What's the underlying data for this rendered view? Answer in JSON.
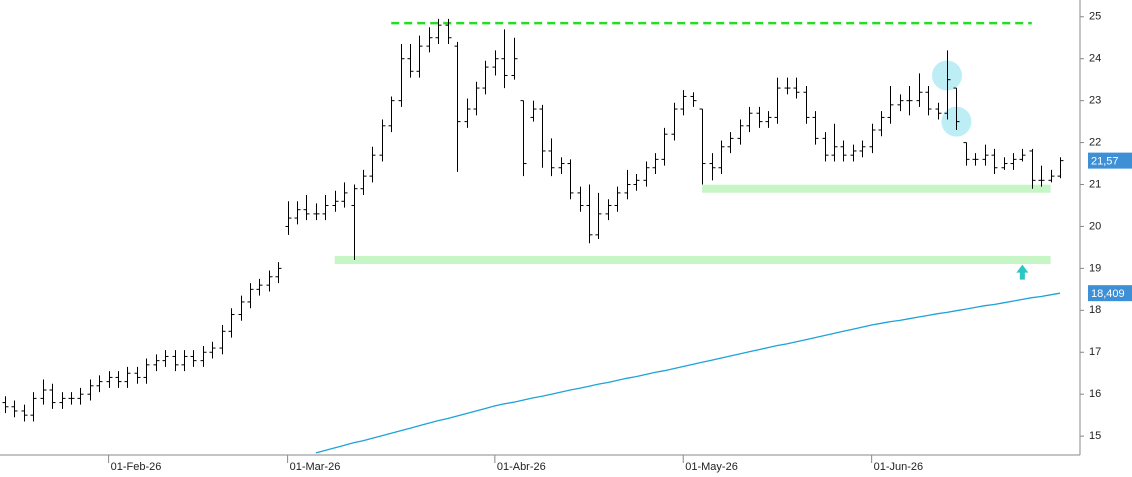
{
  "chart_data": {
    "type": "ohlc",
    "categories": [
      null,
      null,
      null,
      null,
      null,
      null,
      null,
      null,
      null,
      null,
      null,
      "01-Feb-26",
      null,
      null,
      null,
      null,
      null,
      null,
      null,
      null,
      null,
      null,
      null,
      null,
      null,
      null,
      null,
      null,
      null,
      null,
      "01-Mar-26",
      null,
      null,
      null,
      null,
      null,
      null,
      null,
      null,
      null,
      null,
      null,
      null,
      null,
      null,
      null,
      null,
      null,
      null,
      null,
      null,
      null,
      "01-Abr-26",
      null,
      null,
      null,
      null,
      null,
      null,
      null,
      null,
      null,
      null,
      null,
      null,
      null,
      null,
      null,
      null,
      null,
      null,
      null,
      "01-May-26",
      null,
      null,
      null,
      null,
      null,
      null,
      null,
      null,
      null,
      null,
      null,
      null,
      null,
      null,
      null,
      null,
      null,
      null,
      null,
      "01-Jun-26",
      null,
      null,
      null,
      null,
      null,
      null,
      null,
      null,
      null,
      null,
      null,
      null,
      null,
      null,
      null,
      null,
      null,
      null,
      null,
      null
    ],
    "ohlc": {
      "color": "#000000",
      "open": [
        15.8,
        15.7,
        15.6,
        15.5,
        15.9,
        16.1,
        15.8,
        15.9,
        15.9,
        16.0,
        16.2,
        16.3,
        16.4,
        16.3,
        16.5,
        16.4,
        16.7,
        16.8,
        16.9,
        16.7,
        16.9,
        16.8,
        17.0,
        17.1,
        17.5,
        17.9,
        18.2,
        18.5,
        18.6,
        18.8,
        20.0,
        20.2,
        20.4,
        20.3,
        20.3,
        20.5,
        20.6,
        20.5,
        20.9,
        21.2,
        21.7,
        22.4,
        23.0,
        24.0,
        23.7,
        24.3,
        24.5,
        24.8,
        24.3,
        22.5,
        22.8,
        23.3,
        23.8,
        24.0,
        23.6,
        23.0,
        22.6,
        22.8,
        21.8,
        21.4,
        21.5,
        20.8,
        20.5,
        19.8,
        20.3,
        20.5,
        20.8,
        21.0,
        21.1,
        21.4,
        21.6,
        22.2,
        22.8,
        23.1,
        22.8,
        21.5,
        21.4,
        21.9,
        22.1,
        22.4,
        22.7,
        22.5,
        22.6,
        23.3,
        23.3,
        23.2,
        22.6,
        22.1,
        21.7,
        21.9,
        21.7,
        21.8,
        21.9,
        22.3,
        22.6,
        22.9,
        23.0,
        23.0,
        23.2,
        22.8,
        22.7,
        23.3,
        22.0,
        21.6,
        21.6,
        21.7,
        21.4,
        21.5,
        21.6,
        21.8,
        21.1,
        21.1,
        21.2
      ],
      "high": [
        15.95,
        15.85,
        15.75,
        16.05,
        16.35,
        16.25,
        16.05,
        16.05,
        16.15,
        16.35,
        16.45,
        16.55,
        16.55,
        16.65,
        16.65,
        16.85,
        16.95,
        17.05,
        17.05,
        17.05,
        17.05,
        17.15,
        17.25,
        17.65,
        18.05,
        18.35,
        18.65,
        18.75,
        18.95,
        19.15,
        20.6,
        20.6,
        20.75,
        20.55,
        20.75,
        20.85,
        21.05,
        21.0,
        21.35,
        21.9,
        22.55,
        23.1,
        24.35,
        24.35,
        24.55,
        24.75,
        24.95,
        24.95,
        24.4,
        23.05,
        23.45,
        23.95,
        24.2,
        24.7,
        24.5,
        23.0,
        23.0,
        22.9,
        22.1,
        21.65,
        21.6,
        20.95,
        21.0,
        20.8,
        20.65,
        20.95,
        21.35,
        21.25,
        21.55,
        21.75,
        22.35,
        22.95,
        23.25,
        23.2,
        22.8,
        21.75,
        22.05,
        22.25,
        22.55,
        22.85,
        22.85,
        22.75,
        23.55,
        23.55,
        23.55,
        23.35,
        22.75,
        22.25,
        22.45,
        22.05,
        21.95,
        22.05,
        22.45,
        22.75,
        23.35,
        23.15,
        23.35,
        23.65,
        23.35,
        22.95,
        24.2,
        23.3,
        22.0,
        21.75,
        21.95,
        21.85,
        21.65,
        21.75,
        21.85,
        21.85,
        21.45,
        21.35,
        21.65
      ],
      "low": [
        15.55,
        15.45,
        15.35,
        15.35,
        15.75,
        15.65,
        15.65,
        15.75,
        15.75,
        15.85,
        16.05,
        16.15,
        16.15,
        16.15,
        16.25,
        16.25,
        16.55,
        16.65,
        16.55,
        16.55,
        16.65,
        16.65,
        16.85,
        16.95,
        17.35,
        17.75,
        18.05,
        18.35,
        18.45,
        18.65,
        19.8,
        20.05,
        20.15,
        20.15,
        20.15,
        20.35,
        20.45,
        19.2,
        20.75,
        21.05,
        21.55,
        22.25,
        22.85,
        23.55,
        23.55,
        24.15,
        24.35,
        24.35,
        21.3,
        22.35,
        22.65,
        23.15,
        23.6,
        23.3,
        23.5,
        21.2,
        22.5,
        21.4,
        21.2,
        21.25,
        20.65,
        20.35,
        19.6,
        19.7,
        20.15,
        20.35,
        20.65,
        20.85,
        20.95,
        21.25,
        21.45,
        22.05,
        22.65,
        22.85,
        21.0,
        21.1,
        21.25,
        21.75,
        21.95,
        22.25,
        22.35,
        22.35,
        22.45,
        23.15,
        23.05,
        22.45,
        21.95,
        21.55,
        21.55,
        21.55,
        21.55,
        21.65,
        21.75,
        22.15,
        22.45,
        22.75,
        22.65,
        22.85,
        22.65,
        22.55,
        22.55,
        22.3,
        21.45,
        21.45,
        21.45,
        21.25,
        21.35,
        21.35,
        21.55,
        20.9,
        20.95,
        21.05,
        21.15
      ],
      "close": [
        15.7,
        15.6,
        15.5,
        15.9,
        16.1,
        15.8,
        15.9,
        15.9,
        16.0,
        16.2,
        16.3,
        16.4,
        16.3,
        16.5,
        16.4,
        16.7,
        16.8,
        16.9,
        16.7,
        16.9,
        16.8,
        17.0,
        17.1,
        17.5,
        17.9,
        18.2,
        18.5,
        18.6,
        18.8,
        19.0,
        20.2,
        20.4,
        20.3,
        20.3,
        20.5,
        20.6,
        20.8,
        20.9,
        21.2,
        21.7,
        22.4,
        23.0,
        24.0,
        23.7,
        24.3,
        24.5,
        24.8,
        24.5,
        22.5,
        22.8,
        23.3,
        23.8,
        24.0,
        23.6,
        24.0,
        21.5,
        22.8,
        21.8,
        21.4,
        21.5,
        20.8,
        20.5,
        19.8,
        20.3,
        20.5,
        20.8,
        21.0,
        21.1,
        21.4,
        21.6,
        22.2,
        22.8,
        23.1,
        23.0,
        21.5,
        21.4,
        21.9,
        22.1,
        22.4,
        22.7,
        22.5,
        22.6,
        23.3,
        23.3,
        23.2,
        22.6,
        22.1,
        21.7,
        21.9,
        21.7,
        21.8,
        21.9,
        22.3,
        22.6,
        22.9,
        23.0,
        23.0,
        23.2,
        22.8,
        22.7,
        23.5,
        22.5,
        21.6,
        21.6,
        21.7,
        21.4,
        21.5,
        21.6,
        21.7,
        21.1,
        21.1,
        21.2,
        21.57
      ],
      "last_label": "21,57",
      "label_color": "#3d8fd6"
    },
    "moving_average": {
      "color": "#1ea3d8",
      "values": [
        null,
        null,
        null,
        null,
        null,
        null,
        null,
        null,
        null,
        null,
        null,
        null,
        null,
        null,
        null,
        null,
        null,
        null,
        null,
        null,
        null,
        null,
        null,
        null,
        null,
        null,
        null,
        null,
        null,
        null,
        null,
        null,
        null,
        14.6,
        14.66,
        14.72,
        14.78,
        14.84,
        14.89,
        14.95,
        15.01,
        15.07,
        15.13,
        15.19,
        15.25,
        15.31,
        15.37,
        15.42,
        15.48,
        15.54,
        15.6,
        15.66,
        15.72,
        15.77,
        15.81,
        15.86,
        15.91,
        15.95,
        16.0,
        16.05,
        16.1,
        16.14,
        16.19,
        16.24,
        16.28,
        16.33,
        16.38,
        16.42,
        16.47,
        16.52,
        16.56,
        16.61,
        16.66,
        16.71,
        16.76,
        16.81,
        16.86,
        16.91,
        16.96,
        17.01,
        17.06,
        17.11,
        17.16,
        17.2,
        17.25,
        17.3,
        17.35,
        17.4,
        17.45,
        17.5,
        17.55,
        17.6,
        17.65,
        17.69,
        17.73,
        17.76,
        17.8,
        17.84,
        17.88,
        17.92,
        17.95,
        17.99,
        18.03,
        18.07,
        18.11,
        18.14,
        18.18,
        18.22,
        18.26,
        18.3,
        18.33,
        18.37,
        18.409
      ],
      "last_label": "18,409",
      "label_color": "#3d8fd6"
    },
    "levels": [
      {
        "value": 24.85,
        "from": 41,
        "to": 109,
        "style": "dashed",
        "color": "#22dd22"
      },
      {
        "value": 20.9,
        "from": 74,
        "to": 111,
        "style": "band",
        "color": "#c6f5c6"
      },
      {
        "value": 19.2,
        "from": 35,
        "to": 111,
        "style": "band",
        "color": "#c6f5c6"
      }
    ],
    "circles": [
      {
        "index": 100,
        "value": 23.6,
        "color": "#bdeef6"
      },
      {
        "index": 101,
        "value": 22.5,
        "color": "#bdeef6"
      }
    ],
    "arrow": {
      "index": 108,
      "value": 18.9,
      "color": "#2cc6c4"
    },
    "ylim": [
      14.55,
      25.4
    ],
    "yticks": [
      15,
      16,
      17,
      18,
      19,
      20,
      21,
      22,
      23,
      24,
      25
    ],
    "side": "right"
  }
}
